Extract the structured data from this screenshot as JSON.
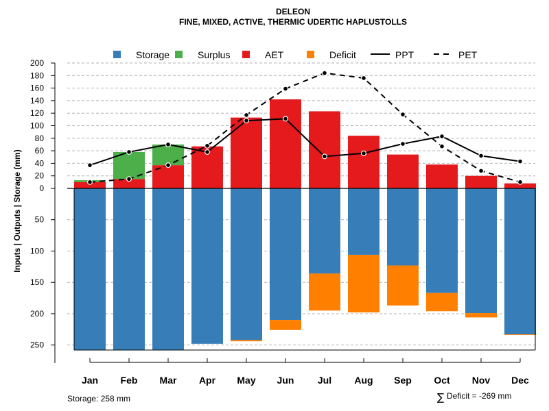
{
  "chart_data": {
    "type": "bar",
    "title": "DELEON",
    "subtitle": "FINE, MIXED, ACTIVE, THERMIC UDERTIC HAPLUSTOLLS",
    "ylabel": "Inputs | Outputs | Storage     (mm)",
    "categories": [
      "Jan",
      "Feb",
      "Mar",
      "Apr",
      "May",
      "Jun",
      "Jul",
      "Aug",
      "Sep",
      "Oct",
      "Nov",
      "Dec"
    ],
    "legend": [
      {
        "key": "storage",
        "label": "Storage",
        "color": "#377eb8",
        "kind": "square"
      },
      {
        "key": "surplus",
        "label": "Surplus",
        "color": "#4daf4a",
        "kind": "square"
      },
      {
        "key": "aet",
        "label": "AET",
        "color": "#e41a1c",
        "kind": "square"
      },
      {
        "key": "deficit",
        "label": "Deficit",
        "color": "#ff7f00",
        "kind": "square"
      },
      {
        "key": "ppt",
        "label": "PPT",
        "color": "#000000",
        "kind": "solid-line"
      },
      {
        "key": "pet",
        "label": "PET",
        "color": "#000000",
        "kind": "dashed-line"
      }
    ],
    "upper_axis": {
      "ylim": [
        0,
        200
      ],
      "ticks": [
        "0",
        "20",
        "40",
        "60",
        "80",
        "100",
        "120",
        "140",
        "160",
        "180",
        "200"
      ]
    },
    "lower_axis": {
      "ylim": [
        0,
        258
      ],
      "ticks": [
        "0",
        "50",
        "100",
        "150",
        "200",
        "250"
      ]
    },
    "series": [
      {
        "name": "AET",
        "values": [
          10,
          15,
          37,
          67,
          113,
          142,
          123,
          84,
          54,
          38,
          20,
          8
        ]
      },
      {
        "name": "Surplus",
        "values": [
          3,
          43,
          33,
          0,
          0,
          0,
          0,
          0,
          0,
          0,
          0,
          0
        ]
      },
      {
        "name": "Storage",
        "values": [
          258,
          258,
          258,
          248,
          242,
          210,
          136,
          106,
          123,
          167,
          199,
          233
        ]
      },
      {
        "name": "Deficit",
        "values": [
          0,
          0,
          0,
          0,
          2,
          16,
          59,
          92,
          64,
          29,
          7,
          1
        ]
      },
      {
        "name": "PPT",
        "values": [
          37,
          58,
          70,
          58,
          108,
          111,
          51,
          56,
          71,
          83,
          52,
          43
        ]
      },
      {
        "name": "PET",
        "values": [
          10,
          15,
          37,
          68,
          117,
          159,
          184,
          176,
          118,
          67,
          28,
          10
        ]
      }
    ],
    "storage_label": "Storage: 258 mm",
    "deficit_label": "Deficit = -269 mm",
    "deficit_symbol": "∑"
  }
}
